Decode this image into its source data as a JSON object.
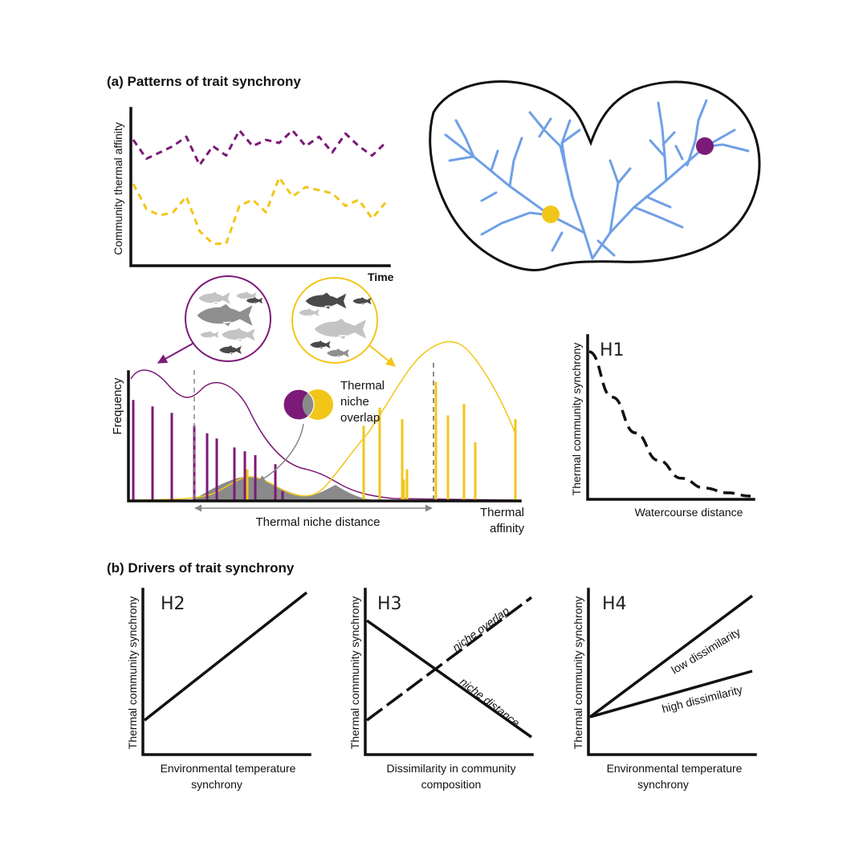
{
  "panel_a": {
    "title": "(a) Patterns of trait synchrony",
    "ts_ylabel": "Community thermal affinity",
    "ts_xlabel": "Time",
    "freq_ylabel": "Frequency",
    "freq_xlabel_1": "Thermal",
    "freq_xlabel_2": "affinity",
    "overlap_1": "Thermal",
    "overlap_2": "niche",
    "overlap_3": "overlap",
    "niche_distance": "Thermal niche distance",
    "h1_label": "H1",
    "h1_ylabel": "Thermal community synchrony",
    "h1_xlabel": "Watercourse distance"
  },
  "panel_b": {
    "title": "(b) Drivers of trait synchrony",
    "h2_label": "H2",
    "h2_ylabel": "Thermal community synchrony",
    "h2_xlabel_1": "Environmental  temperature",
    "h2_xlabel_2": "synchrony",
    "h3_label": "H3",
    "h3_ylabel": "Thermal community synchrony",
    "h3_xlabel_1": "Dissimilarity in community",
    "h3_xlabel_2": "composition",
    "h3_line_overlap": "niche overlap",
    "h3_line_distance": "niche distance",
    "h4_label": "H4",
    "h4_ylabel": "Thermal community synchrony",
    "h4_xlabel_1": "Environmental  temperature",
    "h4_xlabel_2": "synchrony",
    "h4_line_low": "low dissimilarity",
    "h4_line_high": "high dissimilarity"
  },
  "colors": {
    "purple": "#7b1a77",
    "yellow": "#f2c619",
    "river": "#6fa0e6",
    "overlap_fill": "#8a8a8a",
    "fish_dark": "#4a4a4a",
    "fish_mid": "#8f8f8f",
    "fish_light": "#c4c4c4"
  },
  "chart_data": [
    {
      "type": "line",
      "series": [
        {
          "values": [
            6,
            5.4,
            5.6,
            5.8,
            6.1,
            5.2,
            5.8,
            5.5,
            6.3,
            5.8,
            6,
            5.9,
            6.3,
            5.8,
            6.1,
            5.6,
            6.2,
            5.8,
            5.5,
            5.9
          ]
        },
        {
          "values": [
            4.6,
            3.8,
            3.6,
            3.7,
            4.2,
            3.1,
            2.7,
            2.7,
            3.9,
            4.1,
            3.7,
            4.8,
            4.2,
            4.5,
            4.4,
            4.3,
            3.9,
            4.1,
            3.5,
            4
          ]
        }
      ]
    },
    {
      "type": "bar",
      "series": [
        {
          "values": [
            0.78,
            0.73,
            0.68,
            0.58,
            0.52,
            0.48,
            0.41,
            0.38,
            0.35,
            0.28,
            0.07
          ]
        },
        {
          "values": [
            0.24,
            0.58,
            0.72,
            0.63,
            0.16,
            0.24,
            0.92,
            0.66,
            0.75,
            0.45,
            0.63
          ]
        }
      ]
    },
    {
      "type": "line",
      "series": [
        {
          "values": [
            0.9,
            0.62,
            0.4,
            0.23,
            0.12,
            0.06,
            0.03,
            0.01
          ]
        }
      ]
    },
    {
      "type": "line",
      "series": [
        {
          "values": [
            0.2,
            0.98
          ]
        }
      ]
    },
    {
      "type": "line",
      "series": [
        {
          "name": "niche overlap",
          "values": [
            0.2,
            0.95
          ]
        },
        {
          "name": "niche distance",
          "values": [
            1,
            0.12
          ]
        }
      ]
    },
    {
      "type": "line",
      "series": [
        {
          "name": "low dissimilarity",
          "values": [
            0.22,
            0.96
          ]
        },
        {
          "name": "high dissimilarity",
          "values": [
            0.22,
            0.5
          ]
        }
      ]
    }
  ]
}
